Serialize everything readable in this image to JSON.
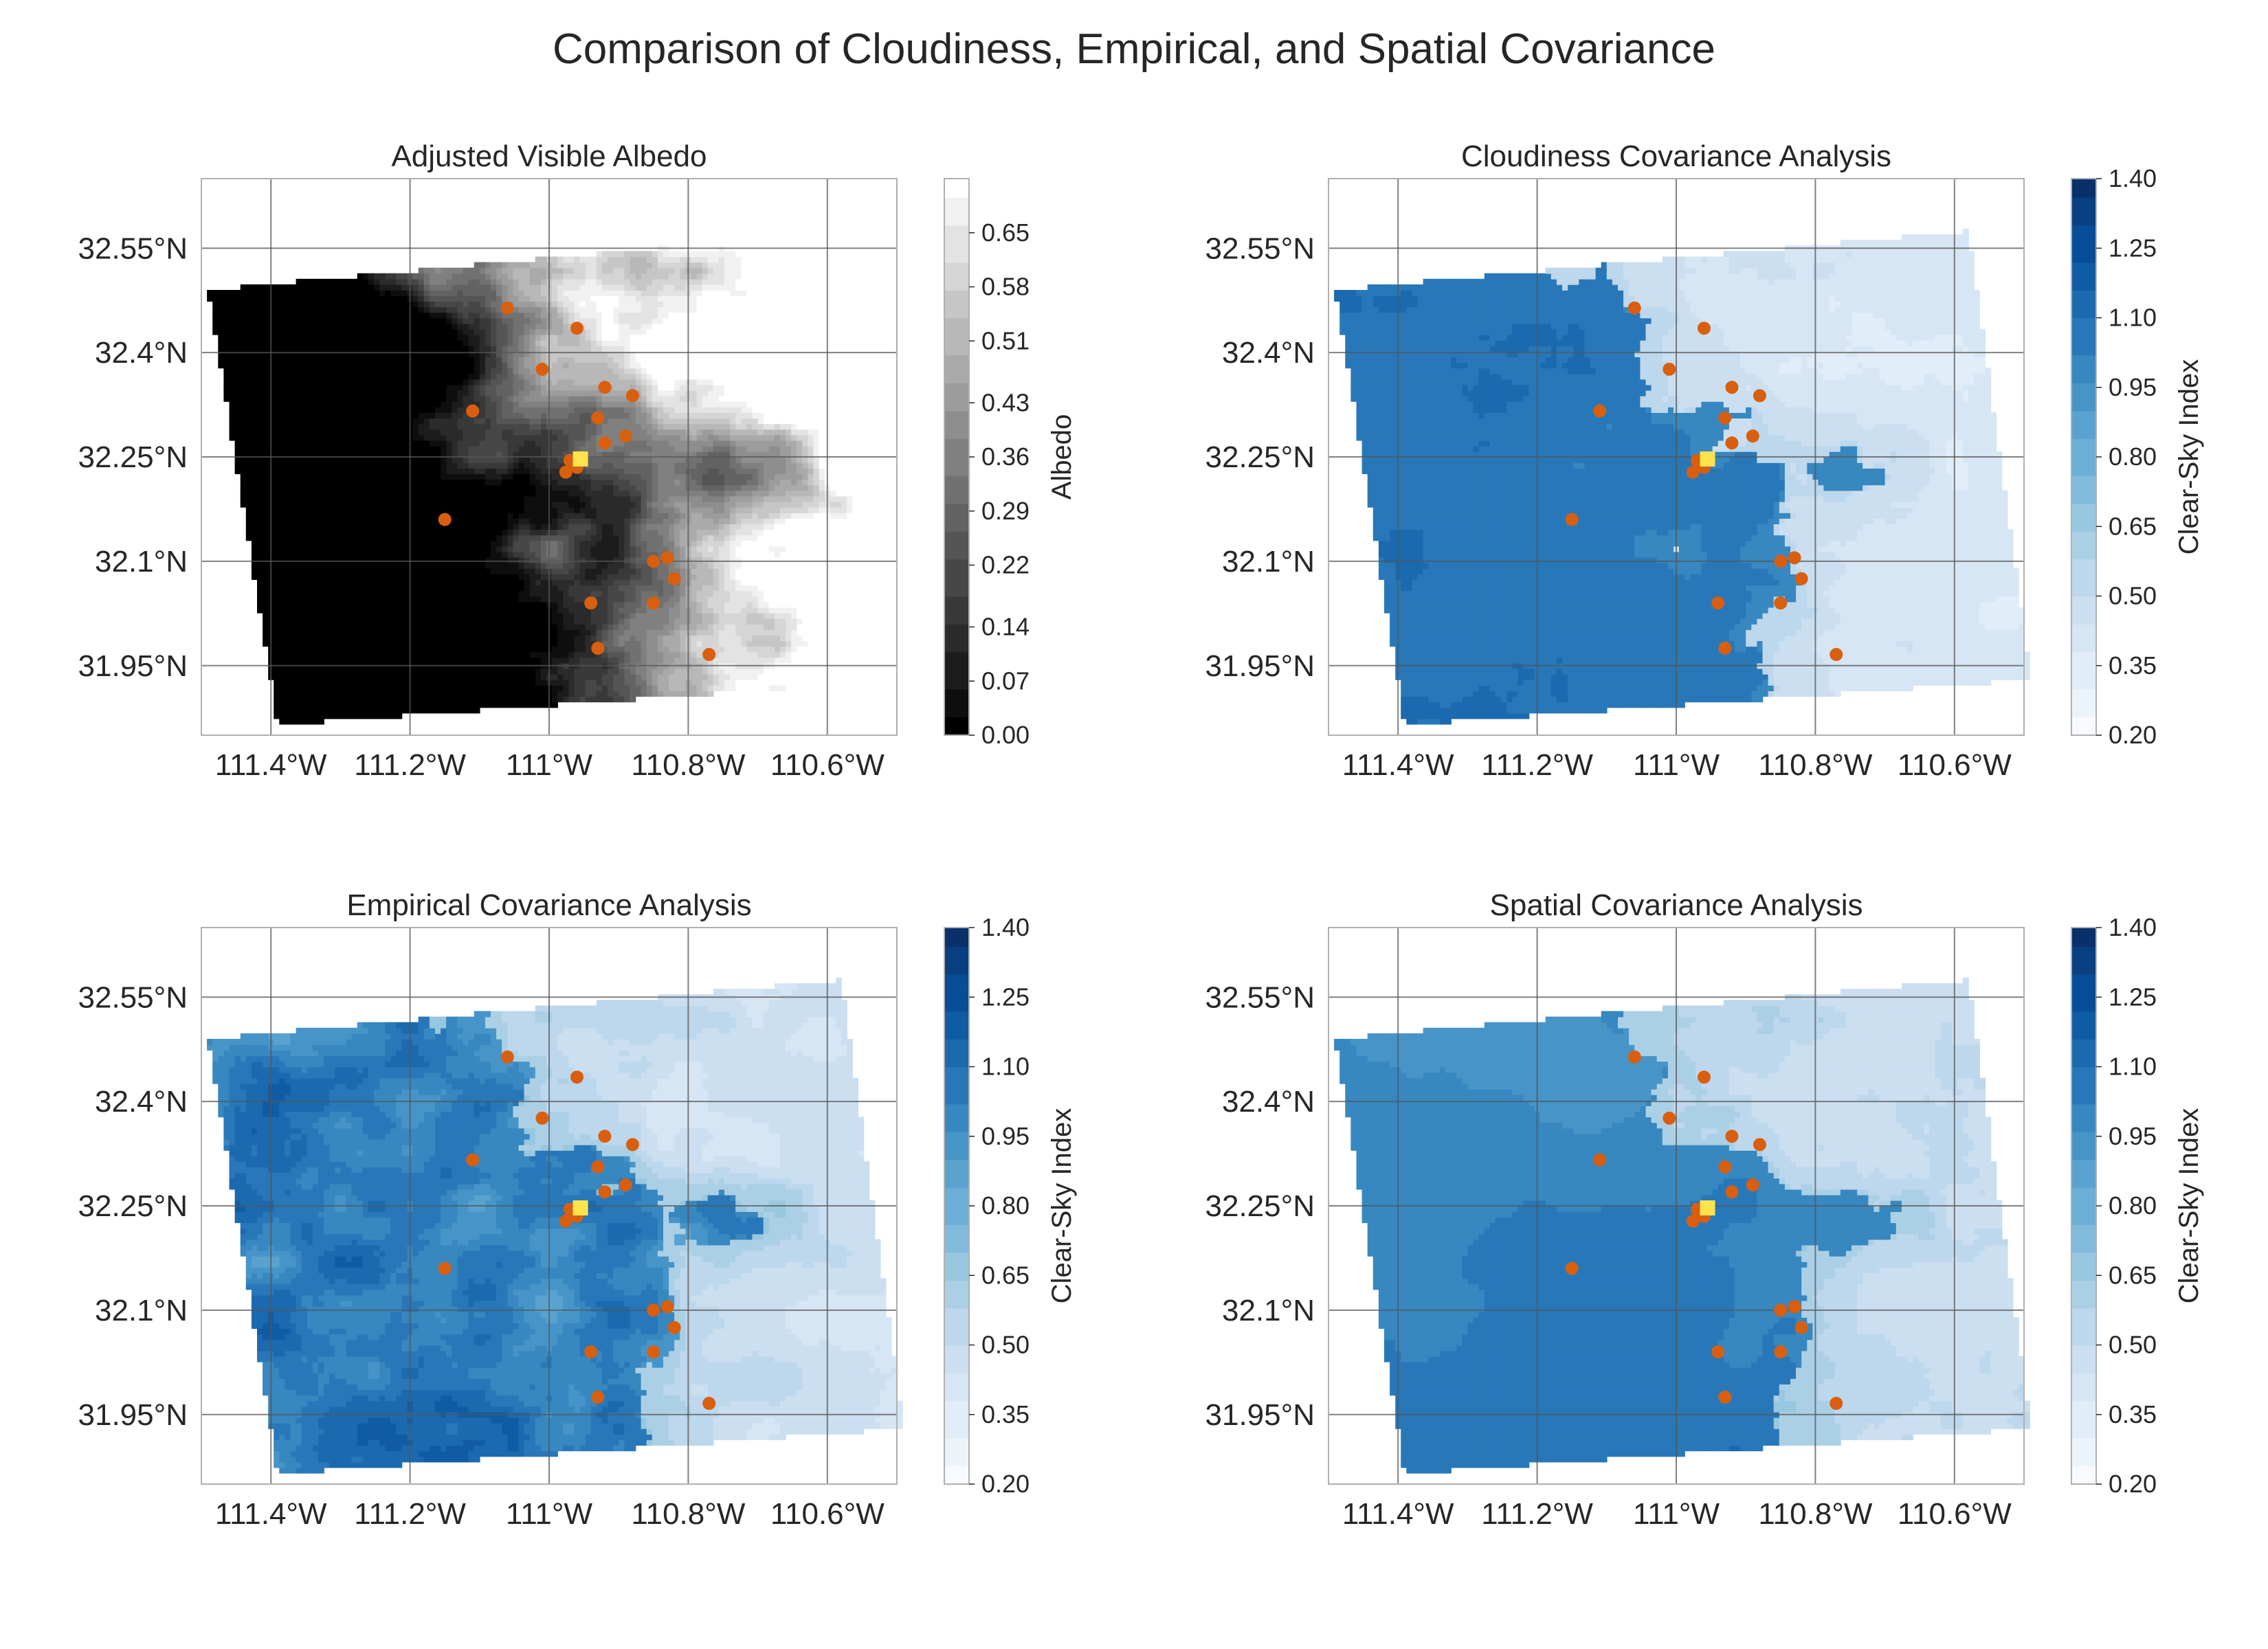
{
  "title": "Comparison of Cloudiness, Empirical, and Spatial Covariance",
  "colors": {
    "gray_min": "#000000",
    "gray_max": "#ffffff",
    "blue_min": "#f7fbff",
    "blue_max": "#08306b",
    "marker": "#d95f0e",
    "site_marker": "#ffe34d",
    "grid": "#555555",
    "frame": "#b0b0b0"
  },
  "chart_data": [
    {
      "type": "heatmap",
      "title": "Adjusted Visible Albedo",
      "colormap": "gray",
      "colorbar_label": "Albedo",
      "colorbar_ticks": [
        "0.00",
        "0.07",
        "0.14",
        "0.22",
        "0.29",
        "0.36",
        "0.43",
        "0.51",
        "0.58",
        "0.65"
      ],
      "colorbar_range": [
        0.0,
        0.72
      ],
      "xlim": [
        -111.5,
        -110.5
      ],
      "ylim": [
        31.85,
        32.65
      ],
      "x_ticks": [
        "111.4°W",
        "111.2°W",
        "111°W",
        "110.8°W",
        "110.6°W"
      ],
      "y_ticks": [
        "32.55°N",
        "32.4°N",
        "32.25°N",
        "32.1°N",
        "31.95°N"
      ],
      "grid": true,
      "field": "cloud_east_bright",
      "markers": "stations"
    },
    {
      "type": "heatmap",
      "title": "Cloudiness Covariance Analysis",
      "colormap": "Blues",
      "colorbar_label": "Clear-Sky Index",
      "colorbar_ticks": [
        "0.20",
        "0.35",
        "0.50",
        "0.65",
        "0.80",
        "0.95",
        "1.10",
        "1.25",
        "1.40"
      ],
      "colorbar_range": [
        0.2,
        1.4
      ],
      "xlim": [
        -111.5,
        -110.5
      ],
      "ylim": [
        31.85,
        32.65
      ],
      "x_ticks": [
        "111.4°W",
        "111.2°W",
        "111°W",
        "110.8°W",
        "110.6°W"
      ],
      "y_ticks": [
        "32.55°N",
        "32.4°N",
        "32.25°N",
        "32.1°N",
        "31.95°N"
      ],
      "grid": true,
      "field": "csi_cloudiness",
      "markers": "stations"
    },
    {
      "type": "heatmap",
      "title": "Empirical Covariance Analysis",
      "colormap": "Blues",
      "colorbar_label": "Clear-Sky Index",
      "colorbar_ticks": [
        "0.20",
        "0.35",
        "0.50",
        "0.65",
        "0.80",
        "0.95",
        "1.10",
        "1.25",
        "1.40"
      ],
      "colorbar_range": [
        0.2,
        1.4
      ],
      "xlim": [
        -111.5,
        -110.5
      ],
      "ylim": [
        31.85,
        32.65
      ],
      "x_ticks": [
        "111.4°W",
        "111.2°W",
        "111°W",
        "110.8°W",
        "110.6°W"
      ],
      "y_ticks": [
        "32.55°N",
        "32.4°N",
        "32.25°N",
        "32.1°N",
        "31.95°N"
      ],
      "grid": true,
      "field": "csi_empirical",
      "markers": "stations"
    },
    {
      "type": "heatmap",
      "title": "Spatial Covariance Analysis",
      "colormap": "Blues",
      "colorbar_label": "Clear-Sky Index",
      "colorbar_ticks": [
        "0.20",
        "0.35",
        "0.50",
        "0.65",
        "0.80",
        "0.95",
        "1.10",
        "1.25",
        "1.40"
      ],
      "colorbar_range": [
        0.2,
        1.4
      ],
      "xlim": [
        -111.5,
        -110.5
      ],
      "ylim": [
        31.85,
        32.65
      ],
      "x_ticks": [
        "111.4°W",
        "111.2°W",
        "111°W",
        "110.8°W",
        "110.6°W"
      ],
      "y_ticks": [
        "32.55°N",
        "32.4°N",
        "32.25°N",
        "32.1°N",
        "31.95°N"
      ],
      "grid": true,
      "field": "csi_spatial",
      "markers": "stations"
    }
  ],
  "stations": [
    {
      "lon": -111.06,
      "lat": 32.464
    },
    {
      "lon": -110.96,
      "lat": 32.435
    },
    {
      "lon": -111.01,
      "lat": 32.376
    },
    {
      "lon": -110.92,
      "lat": 32.35
    },
    {
      "lon": -110.88,
      "lat": 32.338
    },
    {
      "lon": -111.11,
      "lat": 32.316
    },
    {
      "lon": -110.93,
      "lat": 32.306
    },
    {
      "lon": -110.89,
      "lat": 32.28
    },
    {
      "lon": -110.92,
      "lat": 32.27
    },
    {
      "lon": -110.97,
      "lat": 32.245
    },
    {
      "lon": -110.976,
      "lat": 32.228
    },
    {
      "lon": -110.96,
      "lat": 32.235
    },
    {
      "lon": -111.15,
      "lat": 32.16
    },
    {
      "lon": -110.83,
      "lat": 32.105
    },
    {
      "lon": -110.85,
      "lat": 32.1
    },
    {
      "lon": -110.82,
      "lat": 32.075
    },
    {
      "lon": -110.94,
      "lat": 32.04
    },
    {
      "lon": -110.85,
      "lat": 32.04
    },
    {
      "lon": -110.93,
      "lat": 31.975
    },
    {
      "lon": -110.77,
      "lat": 31.966
    }
  ],
  "site": {
    "lon": -110.955,
    "lat": 32.247
  }
}
